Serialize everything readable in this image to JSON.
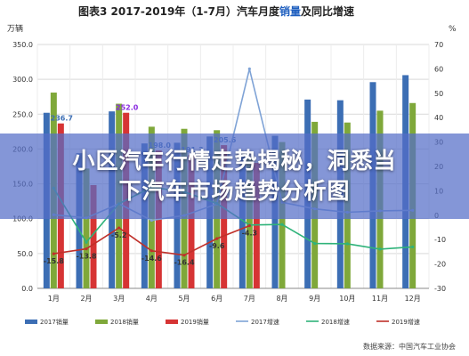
{
  "chart_data": {
    "type": "bar",
    "title_prefix": "图表3",
    "title_main": "2017-2019年（1-7月）汽车月度",
    "title_highlight": "销量",
    "title_suffix": "及同比增速",
    "ylabel_left": "万辆",
    "ylabel_right": "%",
    "ylim_left": [
      0,
      350
    ],
    "ylim_right": [
      -30,
      70
    ],
    "yticks_left": [
      "0.0",
      "50.0",
      "100.0",
      "150.0",
      "200.0",
      "250.0",
      "300.0",
      "350.0"
    ],
    "yticks_right": [
      "-30",
      "-20",
      "-10",
      "0",
      "10",
      "20",
      "30",
      "40",
      "50",
      "60",
      "70"
    ],
    "categories": [
      "1月",
      "2月",
      "3月",
      "4月",
      "5月",
      "6月",
      "7月",
      "8月",
      "9月",
      "10月",
      "11月",
      "12月"
    ],
    "bar_series": [
      {
        "name": "2017销量",
        "color": "#3c6eb4",
        "values": [
          252,
          194,
          254,
          208,
          209,
          218,
          189,
          219,
          271,
          270,
          296,
          306
        ]
      },
      {
        "name": "2018销量",
        "color": "#7fa83a",
        "values": [
          281,
          172,
          265,
          232,
          229,
          227,
          188,
          210,
          239,
          238,
          255,
          266
        ]
      },
      {
        "name": "2019销量",
        "color": "#d63434",
        "values": [
          236.7,
          148.2,
          252.0,
          198.0,
          191.3,
          205.6,
          180.1,
          null,
          null,
          null,
          null,
          null
        ]
      }
    ],
    "line_series": [
      {
        "name": "2017增速",
        "color": "#7fa3d6",
        "values": [
          0.2,
          -1.1,
          4.7,
          -2.1,
          -0.1,
          4.6,
          60,
          5.3,
          2.6,
          1.2,
          1.8,
          2.0
        ]
      },
      {
        "name": "2018增速",
        "color": "#2fb37a",
        "values": [
          11.1,
          -11.1,
          4.7,
          11.5,
          9.6,
          4.8,
          -4.0,
          -3.8,
          -11.6,
          -11.7,
          -13.9,
          -13.0
        ]
      },
      {
        "name": "2019增速",
        "color": "#c0302a",
        "values": [
          -15.8,
          -13.8,
          -5.2,
          -14.6,
          -16.4,
          -9.6,
          -4.3,
          null,
          null,
          null,
          null,
          null
        ]
      }
    ],
    "data_labels_bar_2019": [
      "236.7",
      "",
      "252.0",
      "198.0",
      "191.3",
      "205.6",
      "",
      "",
      "",
      "",
      "",
      ""
    ],
    "data_labels_line_2019": [
      "-15.8",
      "-13.8",
      "-5.2",
      "-14.6",
      "-16.4",
      "-9.6",
      "-4.3",
      "",
      "",
      "",
      "",
      ""
    ],
    "grid": true,
    "legend_position": "bottom",
    "source": "数据来源：中国汽车工业协会"
  },
  "banner": {
    "line1": "小区汽车行情走势揭秘，洞悉当",
    "line2": "下汽车市场趋势分析图"
  }
}
